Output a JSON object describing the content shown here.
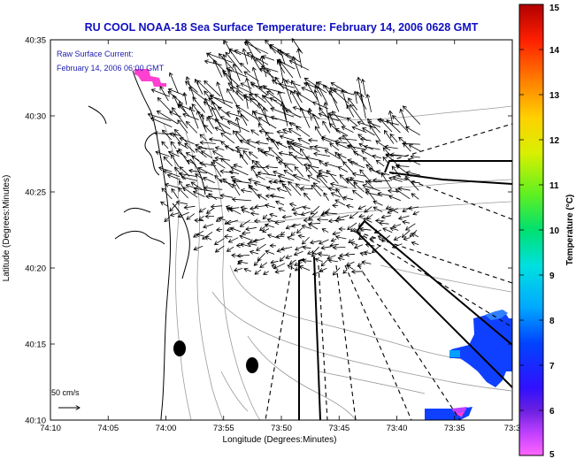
{
  "title": "RU COOL  NOAA-18  Sea Surface Temperature:  February 14, 2006 0628 GMT",
  "caption": {
    "line1": "Raw Surface Current:",
    "line2": "February 14, 2006 06:00 GMT"
  },
  "axes": {
    "xlabel": "Longitude (Degrees:Minutes)",
    "ylabel": "Latitude (Degrees:Minutes)",
    "xticks": [
      "74:10",
      "74:05",
      "74:00",
      "73:55",
      "73:50",
      "73:45",
      "73:40",
      "73:35",
      "73:3"
    ],
    "yticks": [
      "40:35",
      "40:30",
      "40:25",
      "40:20",
      "40:15",
      "40:10"
    ]
  },
  "scale_label": "50 cm/s",
  "colorbar": {
    "label": "Temperature (°C)",
    "ticks": [
      "15",
      "14",
      "13",
      "12",
      "11",
      "10",
      "9",
      "8",
      "7",
      "6",
      "5"
    ],
    "min": 5,
    "max": 15
  },
  "colors": {
    "title_blue": "#1010c0",
    "caption_blue": "#2020b0",
    "land": "#ffffff",
    "contour": "#9a9a9a",
    "shore": "#000000"
  }
}
